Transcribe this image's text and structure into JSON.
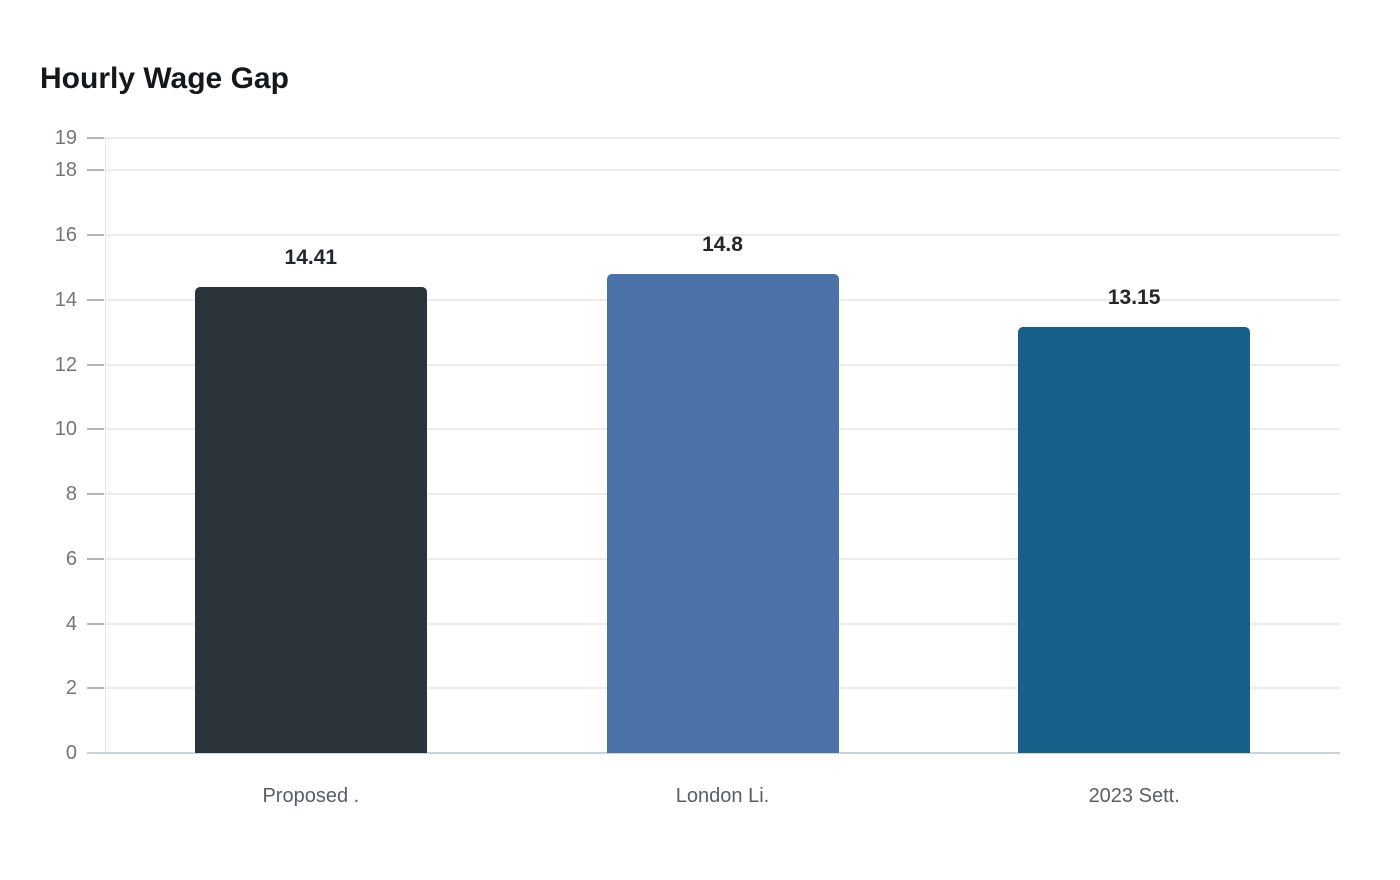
{
  "page": {
    "title": "Hourly Wage Gap"
  },
  "chart_data": {
    "type": "bar",
    "title": "Hourly Wage Gap",
    "categories": [
      "Proposed .",
      "London Li.",
      "2023 Sett."
    ],
    "values": [
      14.41,
      14.8,
      13.15
    ],
    "value_labels": [
      "14.41",
      "14.8",
      "13.15"
    ],
    "bar_colors": [
      "#2b343a",
      "#4a71a8",
      "#166089"
    ],
    "xlabel": "",
    "ylabel": "",
    "ylim": [
      0,
      19
    ],
    "yticks": [
      0,
      2,
      4,
      6,
      8,
      10,
      12,
      14,
      16,
      18,
      19
    ],
    "grid": true,
    "legend_position": "none"
  },
  "colors": {
    "background": "#ffffff",
    "title_text": "#15181b",
    "value_label_text": "#23272b",
    "y_tick_text": "#71767b",
    "x_tick_text": "#575e66",
    "gridline": "#ededed",
    "tick_mark": "#b0b5b9",
    "baseline": "#ccd3d9",
    "axis_dotted": "#d4d4d4"
  }
}
